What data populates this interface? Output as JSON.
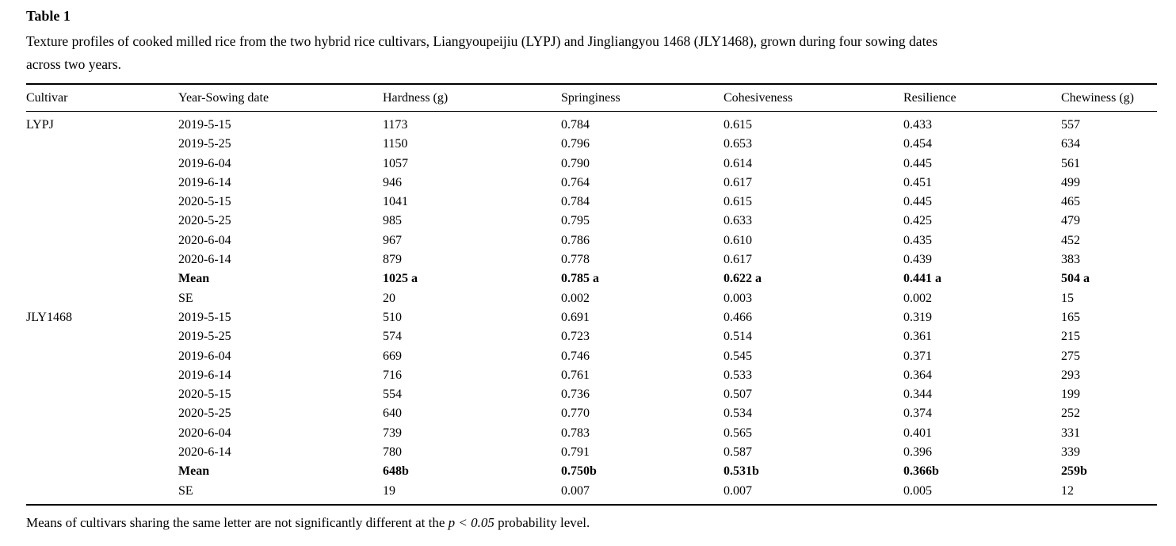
{
  "page": {
    "label": "Table 1",
    "caption_line1": "Texture profiles of cooked milled rice from the two hybrid rice cultivars, Liangyoupeijiu (LYPJ) and Jingliangyou 1468 (JLY1468), grown during four sowing dates",
    "caption_line2": "across two years."
  },
  "table": {
    "columns": [
      "Cultivar",
      "Year-Sowing date",
      "Hardness (g)",
      "Springiness",
      "Cohesiveness",
      "Resilience",
      "Chewiness (g)"
    ],
    "rows": [
      {
        "bold": false,
        "cells": [
          "LYPJ",
          "2019-5-15",
          "1173",
          "0.784",
          "0.615",
          "0.433",
          "557"
        ]
      },
      {
        "bold": false,
        "cells": [
          "",
          "2019-5-25",
          "1150",
          "0.796",
          "0.653",
          "0.454",
          "634"
        ]
      },
      {
        "bold": false,
        "cells": [
          "",
          "2019-6-04",
          "1057",
          "0.790",
          "0.614",
          "0.445",
          "561"
        ]
      },
      {
        "bold": false,
        "cells": [
          "",
          "2019-6-14",
          "946",
          "0.764",
          "0.617",
          "0.451",
          "499"
        ]
      },
      {
        "bold": false,
        "cells": [
          "",
          "2020-5-15",
          "1041",
          "0.784",
          "0.615",
          "0.445",
          "465"
        ]
      },
      {
        "bold": false,
        "cells": [
          "",
          "2020-5-25",
          "985",
          "0.795",
          "0.633",
          "0.425",
          "479"
        ]
      },
      {
        "bold": false,
        "cells": [
          "",
          "2020-6-04",
          "967",
          "0.786",
          "0.610",
          "0.435",
          "452"
        ]
      },
      {
        "bold": false,
        "cells": [
          "",
          "2020-6-14",
          "879",
          "0.778",
          "0.617",
          "0.439",
          "383"
        ]
      },
      {
        "bold": true,
        "cells": [
          "",
          "Mean",
          "1025 a",
          "0.785 a",
          "0.622 a",
          "0.441 a",
          "504 a"
        ]
      },
      {
        "bold": false,
        "cells": [
          "",
          "SE",
          "20",
          "0.002",
          "0.003",
          "0.002",
          "15"
        ]
      },
      {
        "bold": false,
        "cells": [
          "JLY1468",
          "2019-5-15",
          "510",
          "0.691",
          "0.466",
          "0.319",
          "165"
        ]
      },
      {
        "bold": false,
        "cells": [
          "",
          "2019-5-25",
          "574",
          "0.723",
          "0.514",
          "0.361",
          "215"
        ]
      },
      {
        "bold": false,
        "cells": [
          "",
          "2019-6-04",
          "669",
          "0.746",
          "0.545",
          "0.371",
          "275"
        ]
      },
      {
        "bold": false,
        "cells": [
          "",
          "2019-6-14",
          "716",
          "0.761",
          "0.533",
          "0.364",
          "293"
        ]
      },
      {
        "bold": false,
        "cells": [
          "",
          "2020-5-15",
          "554",
          "0.736",
          "0.507",
          "0.344",
          "199"
        ]
      },
      {
        "bold": false,
        "cells": [
          "",
          "2020-5-25",
          "640",
          "0.770",
          "0.534",
          "0.374",
          "252"
        ]
      },
      {
        "bold": false,
        "cells": [
          "",
          "2020-6-04",
          "739",
          "0.783",
          "0.565",
          "0.401",
          "331"
        ]
      },
      {
        "bold": false,
        "cells": [
          "",
          "2020-6-14",
          "780",
          "0.791",
          "0.587",
          "0.396",
          "339"
        ]
      },
      {
        "bold": true,
        "cells": [
          "",
          "Mean",
          "648b",
          "0.750b",
          "0.531b",
          "0.366b",
          "259b"
        ]
      },
      {
        "bold": false,
        "cells": [
          "",
          "SE",
          "19",
          "0.007",
          "0.007",
          "0.005",
          "12"
        ]
      }
    ]
  },
  "footnote": {
    "prefix": "Means of cultivars sharing the same letter are not significantly different at the ",
    "italic": "p < 0.05",
    "suffix": " probability level."
  },
  "colors": {
    "text": "#000000",
    "background": "#ffffff",
    "rule": "#000000"
  }
}
